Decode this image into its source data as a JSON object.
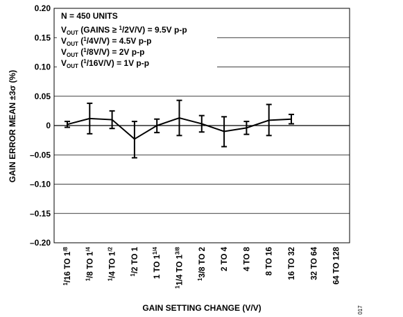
{
  "chart_data": {
    "type": "line",
    "xlabel": "GAIN SETTING CHANGE (V/V)",
    "ylabel": "GAIN ERROR MEAN ±3σ (%)",
    "ylim": [
      -0.2,
      0.2
    ],
    "yticks": [
      "0.20",
      "0.15",
      "0.10",
      "0.05",
      "0",
      "–0.05",
      "–0.10",
      "–0.15",
      "–0.20"
    ],
    "grid": true,
    "categories": [
      {
        "pre": "1",
        "sub": "/16 TO 1",
        "post": "/8"
      },
      {
        "pre": "1",
        "sub": "/8 TO 1",
        "post": "/4"
      },
      {
        "pre": "1",
        "sub": "/4 TO 1",
        "post": "/2"
      },
      {
        "pre": "1",
        "sub": "/2 TO 1",
        "post": ""
      },
      {
        "pre": "",
        "sub": "1 TO 1",
        "post": "1/4"
      },
      {
        "pre": "1",
        "sub": "1/4 TO 1",
        "post": "3/8"
      },
      {
        "pre": "1",
        "sub": "3/8 TO 2",
        "post": ""
      },
      {
        "pre": "",
        "sub": "2 TO 4",
        "post": ""
      },
      {
        "pre": "",
        "sub": "4 TO 8",
        "post": ""
      },
      {
        "pre": "",
        "sub": "8 TO 16",
        "post": ""
      },
      {
        "pre": "",
        "sub": "16 TO 32",
        "post": ""
      },
      {
        "pre": "",
        "sub": "32 TO 64",
        "post": ""
      },
      {
        "pre": "",
        "sub": "64 TO 128",
        "post": ""
      }
    ],
    "series": [
      {
        "mean": [
          0.002,
          0.012,
          0.01,
          -0.023,
          0.0,
          0.013,
          0.003,
          -0.01,
          -0.004,
          0.009,
          0.011,
          null,
          null
        ],
        "upper": [
          0.007,
          0.038,
          0.025,
          0.007,
          0.011,
          0.043,
          0.017,
          0.015,
          0.007,
          0.036,
          0.019,
          null,
          null
        ],
        "lower": [
          -0.003,
          -0.014,
          -0.005,
          -0.055,
          -0.012,
          -0.017,
          -0.011,
          -0.036,
          -0.015,
          -0.017,
          0.003,
          null,
          null
        ]
      }
    ],
    "annotations": {
      "line1": "N = 450 UNITS",
      "line2": {
        "a": "V",
        "b": "OUT",
        "c": " (GAINS ≥ ",
        "d": "1",
        "e": "/2",
        "f": "V/V) = 9.5V p-p"
      },
      "line3": {
        "a": "V",
        "b": "OUT",
        "c": " (",
        "d": "1",
        "e": "/4",
        "f": "V/V) = 4.5V p-p"
      },
      "line4": {
        "a": "V",
        "b": "OUT",
        "c": " (",
        "d": "1",
        "e": "/8",
        "f": "V/V) = 2V p-p"
      },
      "line5": {
        "a": "V",
        "b": "OUT",
        "c": " (",
        "d": "1",
        "e": "/16",
        "f": "V/V) = 1V p-p"
      }
    },
    "figure_code": "017"
  },
  "colors": {
    "line": "#000000",
    "grid": "#000000",
    "background": "#ffffff"
  }
}
